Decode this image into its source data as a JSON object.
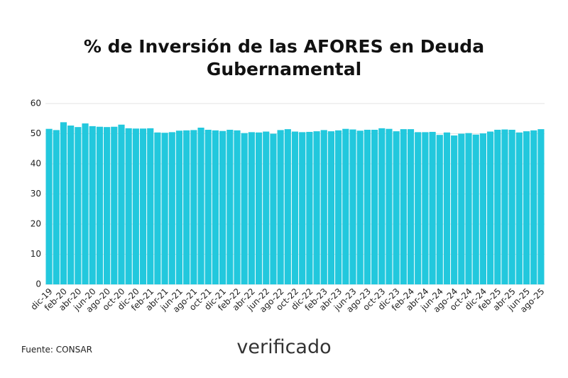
{
  "chart_data": {
    "type": "bar",
    "title": "% de Inversión de las AFORES en Deuda Gubernamental",
    "categories": [
      "dic-19",
      null,
      "feb-20",
      null,
      "abr-20",
      null,
      "jun-20",
      null,
      "ago-20",
      null,
      "oct-20",
      null,
      "dic-20",
      null,
      "feb-21",
      null,
      "abr-21",
      null,
      "jun-21",
      null,
      "ago-21",
      null,
      "oct-21",
      null,
      "dic-21",
      null,
      "feb-22",
      null,
      "abr-22",
      null,
      "jun-22",
      null,
      "ago-22",
      null,
      "oct-22",
      null,
      "dic-22",
      null,
      "feb-23",
      null,
      "abr-23",
      null,
      "jun-23",
      null,
      "ago-23",
      null,
      "oct-23",
      null,
      "dic-23",
      null,
      "feb-24",
      null,
      "abr-24",
      null,
      "jun-24",
      null,
      "ago-24",
      null,
      "oct-24",
      null,
      "dic-24",
      null,
      "feb-25",
      null,
      "abr-25",
      null,
      "jun-25",
      null,
      "ago-25"
    ],
    "values": [
      51.6,
      51.2,
      53.8,
      52.7,
      52.2,
      53.4,
      52.5,
      52.3,
      52.2,
      52.3,
      53.0,
      51.8,
      51.7,
      51.7,
      51.8,
      50.4,
      50.3,
      50.5,
      51.0,
      51.1,
      51.2,
      52.0,
      51.3,
      51.1,
      50.9,
      51.3,
      51.1,
      50.2,
      50.5,
      50.4,
      50.7,
      50.0,
      51.2,
      51.5,
      50.7,
      50.5,
      50.6,
      50.8,
      51.2,
      50.8,
      51.1,
      51.6,
      51.4,
      51.0,
      51.3,
      51.3,
      51.8,
      51.6,
      50.8,
      51.5,
      51.5,
      50.5,
      50.5,
      50.6,
      49.6,
      50.4,
      49.4,
      50.0,
      50.2,
      49.7,
      50.1,
      50.7,
      51.3,
      51.4,
      51.3,
      50.4,
      50.8,
      51.1,
      51.5
    ],
    "color": "#22c8dd",
    "ylim": [
      0,
      60
    ],
    "yticks": [
      0,
      10,
      20,
      30,
      40,
      50,
      60
    ],
    "grid": true,
    "source": "Fuente: CONSAR",
    "logo": "verificado"
  }
}
